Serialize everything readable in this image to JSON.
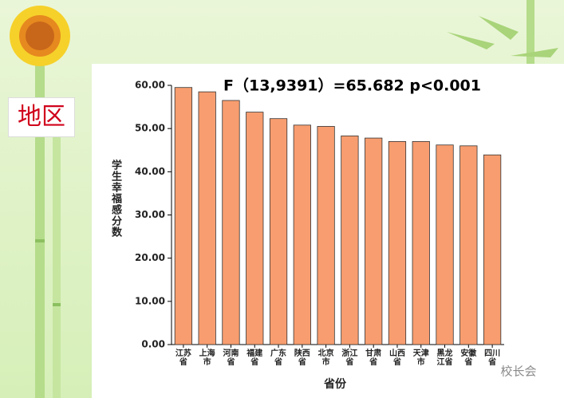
{
  "slide_label": "地区",
  "watermark": "校长会",
  "chart_data": {
    "type": "bar",
    "annotation": "F（13,9391）=65.682    p<0.001",
    "x_label": "省份",
    "y_label": "学生幸福感分数",
    "categories": [
      "江苏省",
      "上海市",
      "河南省",
      "福建省",
      "广东省",
      "陕西省",
      "北京市",
      "浙江省",
      "甘肃省",
      "山西省",
      "天津市",
      "黑龙江省",
      "安徽省",
      "四川省"
    ],
    "values": [
      59.5,
      58.5,
      56.5,
      53.8,
      52.3,
      50.8,
      50.5,
      48.3,
      47.8,
      47.0,
      47.0,
      46.2,
      46.0,
      43.9
    ],
    "color": "#f89d6f",
    "ylim": [
      0,
      60
    ],
    "yticks": [
      {
        "value": 0,
        "label": "0.00"
      },
      {
        "value": 10,
        "label": "10.00"
      },
      {
        "value": 20,
        "label": "20.00"
      },
      {
        "value": 30,
        "label": "30.00"
      },
      {
        "value": 40,
        "label": "40.00"
      },
      {
        "value": 50,
        "label": "50.00"
      },
      {
        "value": 60,
        "label": "60.00"
      }
    ]
  }
}
